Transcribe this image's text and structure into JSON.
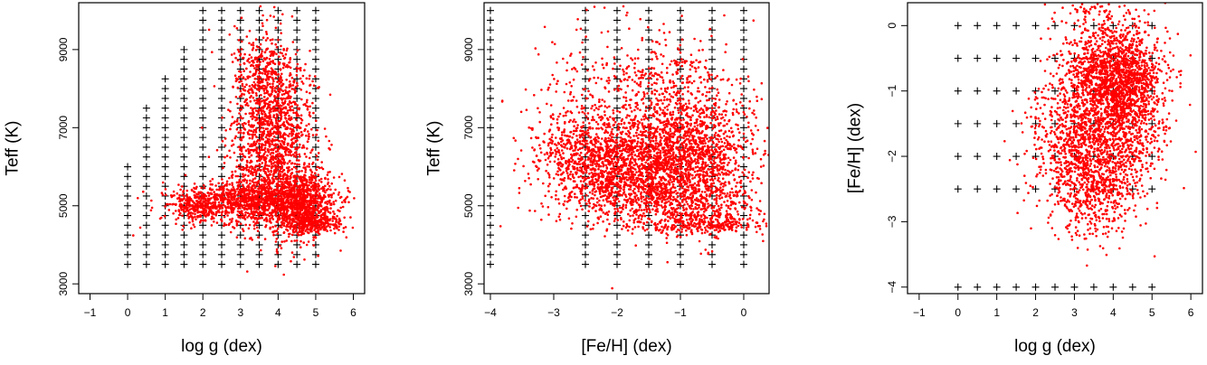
{
  "chart_data": [
    {
      "type": "scatter",
      "xlabel": "log g (dex)",
      "ylabel": "Teff (K)",
      "xlim": [
        -1.3,
        6.3
      ],
      "ylim": [
        2750,
        10200
      ],
      "xticks": [
        -1,
        0,
        1,
        2,
        3,
        4,
        5,
        6
      ],
      "yticks": [
        3000,
        5000,
        7000,
        9000
      ],
      "grid": false,
      "series": [
        {
          "marker": "plus",
          "color": "#000000",
          "columns": [
            {
              "x": 0.0,
              "ymin": 3500,
              "ymax": 6000,
              "step": 250
            },
            {
              "x": 0.5,
              "ymin": 3500,
              "ymax": 7500,
              "step": 250
            },
            {
              "x": 1.0,
              "ymin": 3500,
              "ymax": 8250,
              "step": 250
            },
            {
              "x": 1.5,
              "ymin": 3500,
              "ymax": 9000,
              "step": 250
            },
            {
              "x": 2.0,
              "ymin": 3500,
              "ymax": 10000,
              "step": 250
            },
            {
              "x": 2.5,
              "ymin": 3500,
              "ymax": 10000,
              "step": 250
            },
            {
              "x": 3.0,
              "ymin": 3500,
              "ymax": 10000,
              "step": 250
            },
            {
              "x": 3.5,
              "ymin": 3500,
              "ymax": 10000,
              "step": 250
            },
            {
              "x": 4.0,
              "ymin": 3500,
              "ymax": 10000,
              "step": 250
            },
            {
              "x": 4.5,
              "ymin": 3500,
              "ymax": 10000,
              "step": 250
            },
            {
              "x": 5.0,
              "ymin": 3500,
              "ymax": 10000,
              "step": 250
            }
          ]
        },
        {
          "marker": "dot",
          "color": "#ff0000",
          "clusters": [
            {
              "x": 3.9,
              "y": 6600,
              "sx": 0.55,
              "sy": 1100,
              "n": 1400
            },
            {
              "x": 3.3,
              "y": 5100,
              "sx": 1.0,
              "sy": 280,
              "n": 1100
            },
            {
              "x": 4.7,
              "y": 5100,
              "sx": 0.4,
              "sy": 400,
              "n": 700
            },
            {
              "x": 3.6,
              "y": 8300,
              "sx": 0.4,
              "sy": 600,
              "n": 300
            },
            {
              "x": 4.9,
              "y": 4550,
              "sx": 0.4,
              "sy": 120,
              "n": 250
            },
            {
              "x": 1.8,
              "y": 5000,
              "sx": 0.3,
              "sy": 200,
              "n": 200
            }
          ]
        }
      ]
    },
    {
      "type": "scatter",
      "xlabel": "[Fe/H] (dex)",
      "ylabel": "Teff (K)",
      "xlim": [
        -4.1,
        0.4
      ],
      "ylim": [
        2750,
        10200
      ],
      "xticks": [
        -4,
        -3,
        -2,
        -1,
        0
      ],
      "yticks": [
        3000,
        5000,
        7000,
        9000
      ],
      "grid": false,
      "series": [
        {
          "marker": "plus",
          "color": "#000000",
          "columns": [
            {
              "x": -4.0,
              "ymin": 3500,
              "ymax": 10000,
              "step": 250
            },
            {
              "x": -2.5,
              "ymin": 3500,
              "ymax": 10000,
              "step": 250
            },
            {
              "x": -2.0,
              "ymin": 3500,
              "ymax": 10000,
              "step": 250
            },
            {
              "x": -1.5,
              "ymin": 3500,
              "ymax": 10000,
              "step": 250
            },
            {
              "x": -1.0,
              "ymin": 3500,
              "ymax": 10000,
              "step": 250
            },
            {
              "x": -0.5,
              "ymin": 3500,
              "ymax": 10000,
              "step": 250
            },
            {
              "x": 0.0,
              "ymin": 3500,
              "ymax": 10000,
              "step": 250
            }
          ]
        },
        {
          "marker": "dot",
          "color": "#ff0000",
          "clusters": [
            {
              "x": -1.9,
              "y": 6000,
              "sx": 0.55,
              "sy": 550,
              "n": 1300
            },
            {
              "x": -0.8,
              "y": 6200,
              "sx": 0.45,
              "sy": 900,
              "n": 1300
            },
            {
              "x": -1.5,
              "y": 7600,
              "sx": 0.8,
              "sy": 900,
              "n": 700
            },
            {
              "x": -1.3,
              "y": 5000,
              "sx": 0.8,
              "sy": 350,
              "n": 500
            },
            {
              "x": -2.8,
              "y": 6500,
              "sx": 0.35,
              "sy": 500,
              "n": 250
            },
            {
              "x": -0.5,
              "y": 4500,
              "sx": 0.5,
              "sy": 100,
              "n": 200
            }
          ]
        }
      ]
    },
    {
      "type": "scatter",
      "xlabel": "log g (dex)",
      "ylabel": "[Fe/H] (dex)",
      "xlim": [
        -1.3,
        6.3
      ],
      "ylim": [
        -4.1,
        0.35
      ],
      "xticks": [
        -1,
        0,
        1,
        2,
        3,
        4,
        5,
        6
      ],
      "yticks": [
        -4,
        -3,
        -2,
        -1,
        0
      ],
      "grid": false,
      "series": [
        {
          "marker": "plus",
          "color": "#000000",
          "rows": [
            {
              "y": 0.0,
              "xmin": 0,
              "xmax": 5,
              "step": 0.5
            },
            {
              "y": -0.5,
              "xmin": 0,
              "xmax": 5,
              "step": 0.5
            },
            {
              "y": -1.0,
              "xmin": 0,
              "xmax": 5,
              "step": 0.5
            },
            {
              "y": -1.5,
              "xmin": 0,
              "xmax": 5,
              "step": 0.5
            },
            {
              "y": -2.0,
              "xmin": 0,
              "xmax": 5,
              "step": 0.5
            },
            {
              "y": -2.5,
              "xmin": 0,
              "xmax": 5,
              "step": 0.5
            },
            {
              "y": -4.0,
              "xmin": 0,
              "xmax": 5,
              "step": 0.5
            }
          ]
        },
        {
          "marker": "dot",
          "color": "#ff0000",
          "clusters": [
            {
              "x": 4.0,
              "y": -0.75,
              "sx": 0.6,
              "sy": 0.4,
              "n": 1400
            },
            {
              "x": 3.3,
              "y": -1.8,
              "sx": 0.7,
              "sy": 0.55,
              "n": 1300
            },
            {
              "x": 4.5,
              "y": -1.3,
              "sx": 0.5,
              "sy": 0.5,
              "n": 500
            },
            {
              "x": 3.6,
              "y": -2.6,
              "sx": 0.6,
              "sy": 0.35,
              "n": 300
            },
            {
              "x": 3.5,
              "y": 0.25,
              "sx": 0.6,
              "sy": 0.06,
              "n": 40
            }
          ]
        }
      ]
    }
  ]
}
